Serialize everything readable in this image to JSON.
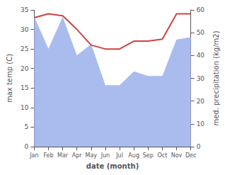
{
  "chart_data": {
    "type": "line",
    "xlabel": "date (month)",
    "ylabel": "max temp (C)",
    "y2label": "med. precipitation (kg/m2)",
    "categories": [
      "Jan",
      "Feb",
      "Mar",
      "Apr",
      "May",
      "Jun",
      "Jul",
      "Aug",
      "Sep",
      "Oct",
      "Nov",
      "Dec"
    ],
    "series": [
      {
        "type": "area",
        "axis": "y2",
        "color": "#aabbee",
        "values": [
          57.0,
          43.0,
          57.0,
          40.0,
          45.0,
          27.0,
          27.0,
          33.0,
          31.0,
          31.0,
          47.0,
          48.0
        ]
      },
      {
        "type": "line",
        "color": "#cc4444",
        "values": [
          33.0,
          34.0,
          33.5,
          30.0,
          26.0,
          25.0,
          25.0,
          27.0,
          27.0,
          27.5,
          34.0,
          34.0
        ]
      }
    ],
    "ylim": [
      0,
      35
    ],
    "yticks": [
      0,
      5,
      10,
      15,
      20,
      25,
      30,
      35
    ],
    "y2lim": [
      0,
      60
    ],
    "y2ticks": [
      0,
      10,
      20,
      30,
      40,
      50,
      60
    ],
    "grid": false
  }
}
